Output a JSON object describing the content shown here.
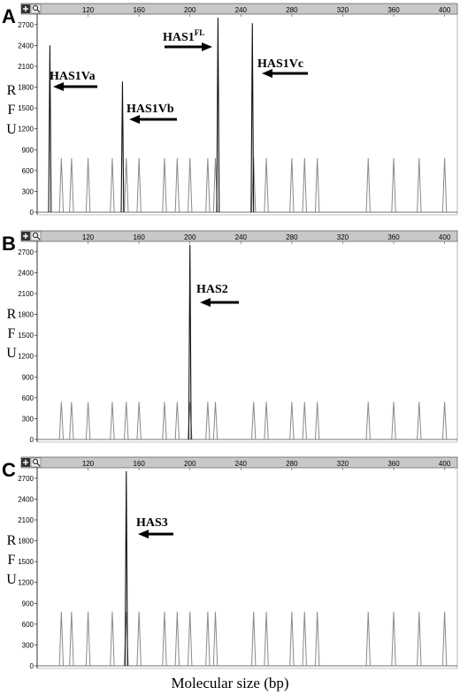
{
  "xlabel": "Molecular size (bp)",
  "chart_data": [
    {
      "type": "line",
      "panel": "A",
      "ylabel": "RFU",
      "xlim": [
        80,
        410
      ],
      "ylim": [
        0,
        2800
      ],
      "x_ticks": [
        120,
        160,
        200,
        240,
        280,
        320,
        360,
        400
      ],
      "y_ticks": [
        0,
        300,
        600,
        900,
        1200,
        1500,
        1800,
        2100,
        2400,
        2700
      ],
      "size_standard_peaks": {
        "x": [
          99,
          107,
          120,
          139,
          150,
          160,
          180,
          190,
          200,
          214,
          220,
          250,
          260,
          280,
          290,
          300,
          340,
          360,
          380,
          400
        ],
        "y": [
          780,
          780,
          780,
          780,
          780,
          780,
          780,
          780,
          780,
          780,
          780,
          780,
          780,
          780,
          780,
          780,
          780,
          780,
          780,
          780
        ]
      },
      "sample_peaks": [
        {
          "label": "HAS1Va",
          "superscript": "",
          "x": 90,
          "y": 2400
        },
        {
          "label": "HAS1Vb",
          "superscript": "",
          "x": 147,
          "y": 1880
        },
        {
          "label": "HAS1",
          "superscript": "FL",
          "x": 222,
          "y": 2800
        },
        {
          "label": "HAS1Vc",
          "superscript": "",
          "x": 249,
          "y": 2720
        }
      ]
    },
    {
      "type": "line",
      "panel": "B",
      "ylabel": "RFU",
      "xlim": [
        80,
        410
      ],
      "ylim": [
        0,
        2800
      ],
      "x_ticks": [
        120,
        160,
        200,
        240,
        280,
        320,
        360,
        400
      ],
      "y_ticks": [
        0,
        300,
        600,
        900,
        1200,
        1500,
        1800,
        2100,
        2400,
        2700
      ],
      "size_standard_peaks": {
        "x": [
          99,
          107,
          120,
          139,
          150,
          160,
          180,
          190,
          200,
          214,
          220,
          250,
          260,
          280,
          290,
          300,
          340,
          360,
          380,
          400
        ],
        "y": [
          540,
          540,
          540,
          540,
          540,
          540,
          540,
          540,
          540,
          540,
          540,
          540,
          540,
          540,
          540,
          540,
          540,
          540,
          540,
          540
        ]
      },
      "sample_peaks": [
        {
          "label": "HAS2",
          "superscript": "",
          "x": 200,
          "y": 2800
        }
      ]
    },
    {
      "type": "line",
      "panel": "C",
      "ylabel": "RFU",
      "xlim": [
        80,
        410
      ],
      "ylim": [
        0,
        2800
      ],
      "x_ticks": [
        120,
        160,
        200,
        240,
        280,
        320,
        360,
        400
      ],
      "y_ticks": [
        0,
        300,
        600,
        900,
        1200,
        1500,
        1800,
        2100,
        2400,
        2700
      ],
      "size_standard_peaks": {
        "x": [
          99,
          107,
          120,
          139,
          150,
          160,
          180,
          190,
          200,
          214,
          220,
          250,
          260,
          280,
          290,
          300,
          340,
          360,
          380,
          400
        ],
        "y": [
          780,
          780,
          780,
          780,
          780,
          780,
          780,
          780,
          780,
          780,
          780,
          780,
          780,
          780,
          780,
          780,
          780,
          780,
          780,
          780
        ]
      },
      "sample_peaks": [
        {
          "label": "HAS3",
          "superscript": "",
          "x": 150,
          "y": 2800
        }
      ]
    }
  ]
}
